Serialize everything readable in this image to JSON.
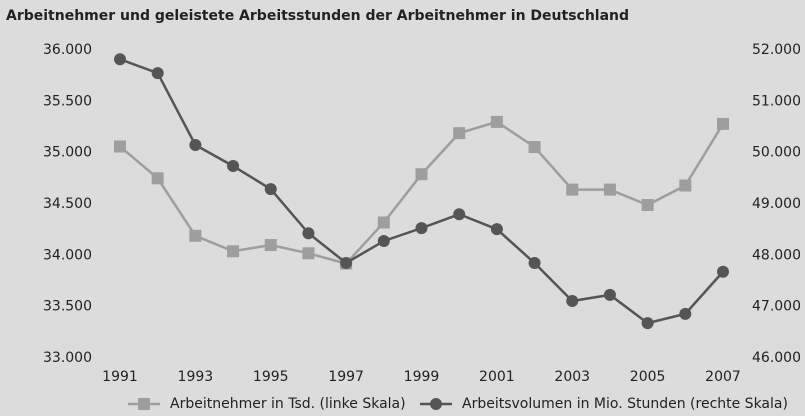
{
  "chart_data": {
    "type": "line",
    "title": "Arbeitnehmer und geleistete Arbeitsstunden der Arbeitnehmer in Deutschland",
    "x": [
      1991,
      1992,
      1993,
      1994,
      1995,
      1996,
      1997,
      1998,
      1999,
      2000,
      2001,
      2002,
      2003,
      2004,
      2005,
      2006,
      2007
    ],
    "xlim": [
      1991,
      2007
    ],
    "xticks": [
      1991,
      1993,
      1995,
      1997,
      1999,
      2001,
      2003,
      2005,
      2007
    ],
    "ylim": [
      33000,
      36000
    ],
    "yticks": [
      {
        "value": 33000,
        "label": "33.000"
      },
      {
        "value": 33500,
        "label": "33.500"
      },
      {
        "value": 34000,
        "label": "34.000"
      },
      {
        "value": 34500,
        "label": "34.500"
      },
      {
        "value": 35000,
        "label": "35.000"
      },
      {
        "value": 35500,
        "label": "35.500"
      },
      {
        "value": 36000,
        "label": "36.000"
      }
    ],
    "y2lim": [
      46000,
      52000
    ],
    "y2ticks": [
      {
        "value": 46000,
        "label": "46.000"
      },
      {
        "value": 47000,
        "label": "47.000"
      },
      {
        "value": 48000,
        "label": "48.000"
      },
      {
        "value": 49000,
        "label": "49.000"
      },
      {
        "value": 50000,
        "label": "50.000"
      },
      {
        "value": 51000,
        "label": "51.000"
      },
      {
        "value": 52000,
        "label": "52.000"
      }
    ],
    "series": [
      {
        "name": "Arbeitnehmer in Tsd. (linke Skala)",
        "color": "#9e9e9e",
        "marker": "square",
        "values": [
          35060,
          34750,
          34190,
          34040,
          34100,
          34020,
          33920,
          34320,
          34790,
          35190,
          35300,
          35055,
          34640,
          34640,
          34490,
          34680,
          35280
        ]
      },
      {
        "name": "Arbeitsvolumen in Mio. Stunden (rechte Skala)",
        "color": "#555555",
        "marker": "circle",
        "axis": "y2",
        "values": [
          51820,
          51550,
          50150,
          49740,
          49290,
          48430,
          47850,
          48280,
          48530,
          48800,
          48510,
          47850,
          47110,
          47230,
          46680,
          46860,
          47680
        ]
      }
    ]
  }
}
